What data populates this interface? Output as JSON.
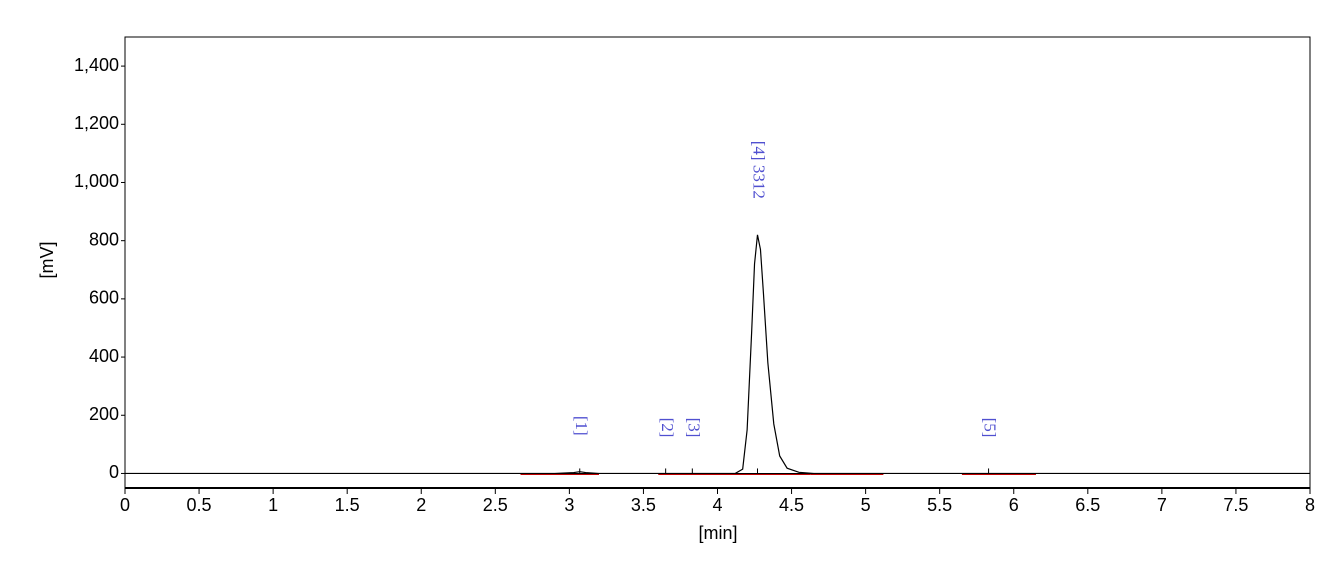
{
  "chart_data": {
    "type": "line",
    "xlabel": "[min]",
    "ylabel": "[mV]",
    "x": [
      0,
      2.9,
      3.03,
      3.07,
      3.11,
      3.2,
      4.12,
      4.17,
      4.2,
      4.23,
      4.25,
      4.27,
      4.29,
      4.31,
      4.34,
      4.38,
      4.42,
      4.47,
      4.55,
      4.65,
      8
    ],
    "values": [
      0,
      0,
      3,
      6,
      3,
      0,
      0,
      15,
      150,
      480,
      720,
      820,
      770,
      620,
      380,
      170,
      60,
      18,
      4,
      0,
      0
    ],
    "color": "#000000",
    "baselines": {
      "color": "#c00000",
      "segments": [
        [
          2.67,
          3.2
        ],
        [
          3.6,
          4.63
        ],
        [
          4.63,
          5.12
        ],
        [
          5.65,
          6.15
        ]
      ]
    },
    "annotations": [
      {
        "x": 3.07,
        "text": "[1]"
      },
      {
        "x": 3.65,
        "text": "[2]"
      },
      {
        "x": 3.83,
        "text": "[3]"
      },
      {
        "x": 4.27,
        "text": "[4]  3312"
      },
      {
        "x": 5.83,
        "text": "[5]"
      }
    ],
    "xlim": [
      0,
      8
    ],
    "xticks": [
      0,
      0.5,
      1,
      1.5,
      2,
      2.5,
      3,
      3.5,
      4,
      4.5,
      5,
      5.5,
      6,
      6.5,
      7,
      7.5,
      8
    ],
    "ylim": [
      -50,
      1500
    ],
    "yticks": [
      0,
      200,
      400,
      600,
      800,
      {
        "value": 1000,
        "label": "1,000"
      },
      {
        "value": 1200,
        "label": "1,200"
      },
      {
        "value": 1400,
        "label": "1,400"
      }
    ],
    "zero_line": true
  }
}
